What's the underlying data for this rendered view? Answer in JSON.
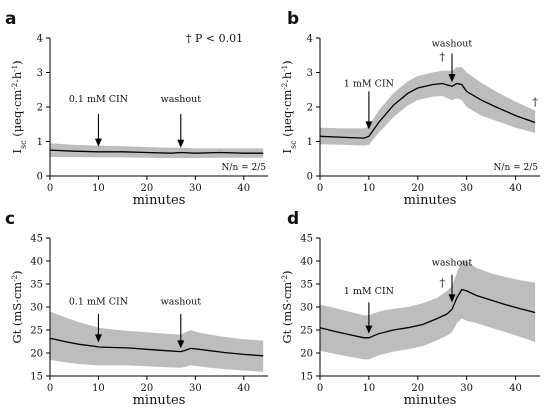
{
  "legend_text": "† P < 0.01",
  "chart_data": [
    {
      "panel": "a",
      "type": "line",
      "xlabel": "minutes",
      "ylabel_main": "I",
      "ylabel_sub": "sc",
      "ylabel_rest": " (μeq·cm",
      "ylabel_exp1": "-2",
      "ylabel_mid": "·h",
      "ylabel_exp2": "-1",
      "ylabel_end": ")",
      "xlim": [
        0,
        45
      ],
      "ylim": [
        0,
        4
      ],
      "xticks": [
        0,
        10,
        20,
        30,
        40
      ],
      "yticks": [
        0,
        1,
        2,
        3,
        4
      ],
      "mean": {
        "x": [
          0,
          5,
          10,
          15,
          20,
          25,
          27,
          30,
          35,
          40,
          44
        ],
        "y": [
          0.75,
          0.72,
          0.7,
          0.7,
          0.68,
          0.66,
          0.68,
          0.66,
          0.68,
          0.66,
          0.66
        ]
      },
      "band_upper": {
        "x": [
          0,
          5,
          10,
          15,
          20,
          25,
          27,
          30,
          35,
          40,
          44
        ],
        "y": [
          0.95,
          0.9,
          0.88,
          0.86,
          0.84,
          0.82,
          0.82,
          0.8,
          0.8,
          0.8,
          0.8
        ]
      },
      "band_lower": {
        "x": [
          0,
          5,
          10,
          15,
          20,
          25,
          27,
          30,
          35,
          40,
          44
        ],
        "y": [
          0.55,
          0.55,
          0.54,
          0.54,
          0.53,
          0.52,
          0.52,
          0.52,
          0.53,
          0.53,
          0.53
        ]
      },
      "annotations": [
        {
          "text": "0.1 mM CIN",
          "x": 10,
          "y_tip": 0.85,
          "y_top": 1.8,
          "label_y": 2.15
        },
        {
          "text": "washout",
          "x": 27,
          "y_tip": 0.82,
          "y_top": 1.8,
          "label_y": 2.15
        }
      ],
      "daggers": [],
      "nn_text": "N/n = 2/5"
    },
    {
      "panel": "b",
      "type": "line",
      "xlabel": "minutes",
      "ylabel_main": "I",
      "ylabel_sub": "sc",
      "ylabel_rest": " (μeq·cm",
      "ylabel_exp1": "-2",
      "ylabel_mid": "·h",
      "ylabel_exp2": "-1",
      "ylabel_end": ")",
      "xlim": [
        0,
        45
      ],
      "ylim": [
        0,
        4
      ],
      "xticks": [
        0,
        10,
        20,
        30,
        40
      ],
      "yticks": [
        0,
        1,
        2,
        3,
        4
      ],
      "mean": {
        "x": [
          0,
          5,
          9,
          10,
          12,
          15,
          18,
          20,
          23,
          25,
          27,
          28,
          29,
          30,
          33,
          36,
          40,
          44
        ],
        "y": [
          1.15,
          1.12,
          1.1,
          1.15,
          1.55,
          2.05,
          2.4,
          2.55,
          2.65,
          2.68,
          2.6,
          2.68,
          2.65,
          2.45,
          2.2,
          2.0,
          1.75,
          1.55
        ]
      },
      "band_upper": {
        "x": [
          0,
          5,
          9,
          10,
          12,
          15,
          18,
          20,
          23,
          25,
          27,
          28,
          29,
          30,
          33,
          36,
          40,
          44
        ],
        "y": [
          1.4,
          1.38,
          1.38,
          1.45,
          1.9,
          2.4,
          2.75,
          2.9,
          3.0,
          3.05,
          3.05,
          3.15,
          3.15,
          3.0,
          2.7,
          2.45,
          2.15,
          1.9
        ]
      },
      "band_lower": {
        "x": [
          0,
          5,
          9,
          10,
          12,
          15,
          18,
          20,
          23,
          25,
          27,
          28,
          29,
          30,
          33,
          36,
          40,
          44
        ],
        "y": [
          0.92,
          0.9,
          0.88,
          0.9,
          1.25,
          1.7,
          2.05,
          2.2,
          2.3,
          2.32,
          2.2,
          2.25,
          2.2,
          2.0,
          1.75,
          1.6,
          1.4,
          1.25
        ]
      },
      "annotations": [
        {
          "text": "1 mM CIN",
          "x": 10,
          "y_tip": 1.35,
          "y_top": 2.45,
          "label_y": 2.6
        },
        {
          "text": "washout",
          "x": 27,
          "y_tip": 2.72,
          "y_top": 3.55,
          "label_y": 3.75
        }
      ],
      "daggers": [
        {
          "text": "†",
          "x": 25,
          "y": 3.35
        },
        {
          "text": "†",
          "x": 44,
          "y": 2.05
        }
      ],
      "nn_text": "N/n = 2/5"
    },
    {
      "panel": "c",
      "type": "line",
      "xlabel": "minutes",
      "ylabel_main": "Gt (mS·cm",
      "ylabel_sub": "",
      "ylabel_rest": "",
      "ylabel_exp1": "-2",
      "ylabel_mid": "",
      "ylabel_exp2": "",
      "ylabel_end": ")",
      "xlim": [
        0,
        45
      ],
      "ylim": [
        15,
        45
      ],
      "xticks": [
        0,
        10,
        20,
        30,
        40
      ],
      "yticks": [
        15,
        20,
        25,
        30,
        35,
        40,
        45
      ],
      "mean": {
        "x": [
          0,
          3,
          6,
          9,
          10,
          13,
          16,
          20,
          24,
          27,
          28,
          29,
          30,
          33,
          36,
          40,
          44
        ],
        "y": [
          23.2,
          22.5,
          21.9,
          21.5,
          21.3,
          21.2,
          21.1,
          20.8,
          20.5,
          20.3,
          20.6,
          21.0,
          20.9,
          20.5,
          20.1,
          19.7,
          19.4
        ]
      },
      "band_upper": {
        "x": [
          0,
          3,
          6,
          9,
          10,
          13,
          16,
          20,
          24,
          27,
          28,
          29,
          30,
          33,
          36,
          40,
          44
        ],
        "y": [
          29.0,
          27.8,
          26.7,
          25.8,
          25.5,
          25.1,
          24.8,
          24.5,
          24.2,
          24.0,
          24.5,
          25.0,
          24.6,
          24.0,
          23.5,
          23.0,
          22.7
        ]
      },
      "band_lower": {
        "x": [
          0,
          3,
          6,
          9,
          10,
          13,
          16,
          20,
          24,
          27,
          28,
          29,
          30,
          33,
          36,
          40,
          44
        ],
        "y": [
          18.5,
          18.0,
          17.6,
          17.4,
          17.3,
          17.3,
          17.3,
          17.1,
          16.9,
          16.8,
          17.0,
          17.3,
          17.2,
          16.8,
          16.5,
          16.2,
          15.9
        ]
      },
      "annotations": [
        {
          "text": "0.1 mM CIN",
          "x": 10,
          "y_tip": 22.3,
          "y_top": 28.5,
          "label_y": 30.5
        },
        {
          "text": "washout",
          "x": 27,
          "y_tip": 21.0,
          "y_top": 28.5,
          "label_y": 30.5
        }
      ],
      "daggers": [],
      "nn_text": ""
    },
    {
      "panel": "d",
      "type": "line",
      "xlabel": "minutes",
      "ylabel_main": "Gt (mS·cm",
      "ylabel_sub": "",
      "ylabel_rest": "",
      "ylabel_exp1": "-2",
      "ylabel_mid": "",
      "ylabel_exp2": "",
      "ylabel_end": ")",
      "xlim": [
        0,
        45
      ],
      "ylim": [
        15,
        45
      ],
      "xticks": [
        0,
        10,
        20,
        30,
        40
      ],
      "yticks": [
        15,
        20,
        25,
        30,
        35,
        40,
        45
      ],
      "mean": {
        "x": [
          0,
          3,
          6,
          9,
          10,
          12,
          15,
          18,
          21,
          24,
          26,
          27,
          28,
          29,
          30,
          32,
          35,
          38,
          41,
          44
        ],
        "y": [
          25.5,
          24.7,
          24.0,
          23.3,
          23.3,
          24.2,
          25.0,
          25.5,
          26.2,
          27.5,
          28.5,
          29.5,
          32.0,
          33.8,
          33.5,
          32.5,
          31.5,
          30.5,
          29.6,
          28.8
        ]
      },
      "band_upper": {
        "x": [
          0,
          3,
          6,
          9,
          10,
          12,
          15,
          18,
          21,
          24,
          26,
          27,
          28,
          29,
          30,
          32,
          35,
          38,
          41,
          44
        ],
        "y": [
          30.5,
          29.8,
          29.0,
          28.2,
          28.2,
          29.0,
          29.6,
          30.0,
          30.8,
          32.0,
          33.5,
          34.5,
          37.5,
          40.0,
          40.0,
          38.5,
          37.3,
          36.5,
          35.8,
          35.3
        ]
      },
      "band_lower": {
        "x": [
          0,
          3,
          6,
          9,
          10,
          12,
          15,
          18,
          21,
          24,
          26,
          27,
          28,
          29,
          30,
          32,
          35,
          38,
          41,
          44
        ],
        "y": [
          20.5,
          19.8,
          19.2,
          18.6,
          18.6,
          19.5,
          20.3,
          20.8,
          21.5,
          22.8,
          23.8,
          24.5,
          26.5,
          27.5,
          27.0,
          26.5,
          25.5,
          24.5,
          23.5,
          22.4
        ]
      },
      "annotations": [
        {
          "text": "1 mM CIN",
          "x": 10,
          "y_tip": 24.2,
          "y_top": 31.0,
          "label_y": 32.8
        },
        {
          "text": "washout",
          "x": 27,
          "y_tip": 31.0,
          "y_top": 37.0,
          "label_y": 39.0
        }
      ],
      "daggers": [
        {
          "text": "†",
          "x": 25,
          "y": 34.5
        }
      ],
      "nn_text": ""
    }
  ]
}
